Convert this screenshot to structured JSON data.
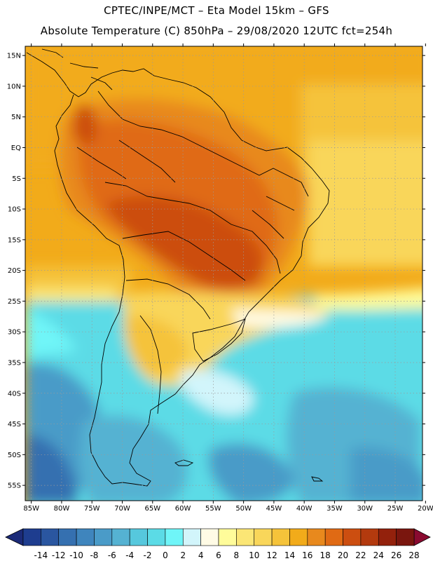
{
  "header": {
    "line1": "CPTEC/INPE/MCT –  Eta Model 15km – GFS",
    "line2": "Absolute Temperature (C) 850hPa – 29/08/2020 12UTC fct=254h"
  },
  "map": {
    "lat_ticks": [
      "15N",
      "10N",
      "5N",
      "EQ",
      "5S",
      "10S",
      "15S",
      "20S",
      "25S",
      "30S",
      "35S",
      "40S",
      "45S",
      "50S",
      "55S"
    ],
    "lon_ticks": [
      "85W",
      "80W",
      "75W",
      "70W",
      "65W",
      "60W",
      "55W",
      "50W",
      "45W",
      "40W",
      "35W",
      "30W",
      "25W",
      "20W"
    ],
    "lat_range": [
      16.5,
      -57.5
    ],
    "lon_range": [
      -86,
      -20.5
    ],
    "grid": "dotted"
  },
  "colorbar": {
    "labels": [
      "-14",
      "-12",
      "-10",
      "-8",
      "-6",
      "-4",
      "-2",
      "0",
      "2",
      "4",
      "6",
      "8",
      "10",
      "12",
      "14",
      "16",
      "18",
      "20",
      "22",
      "24",
      "26",
      "28"
    ],
    "colors": [
      "#1e3d8f",
      "#2a56a0",
      "#3570b0",
      "#3f85bd",
      "#4a9bc8",
      "#55b2d2",
      "#56c8dd",
      "#5bdbe6",
      "#6ff5f8",
      "#d2f5fb",
      "#fffbe5",
      "#fffc9a",
      "#fbe675",
      "#f9d65a",
      "#f5c33a",
      "#f2ab1a",
      "#e8891d",
      "#e06a14",
      "#cc4e10",
      "#b33a0e",
      "#93210c",
      "#7a160e"
    ],
    "left_arrow": "#1b2a78",
    "right_arrow": "#8a0a30"
  }
}
